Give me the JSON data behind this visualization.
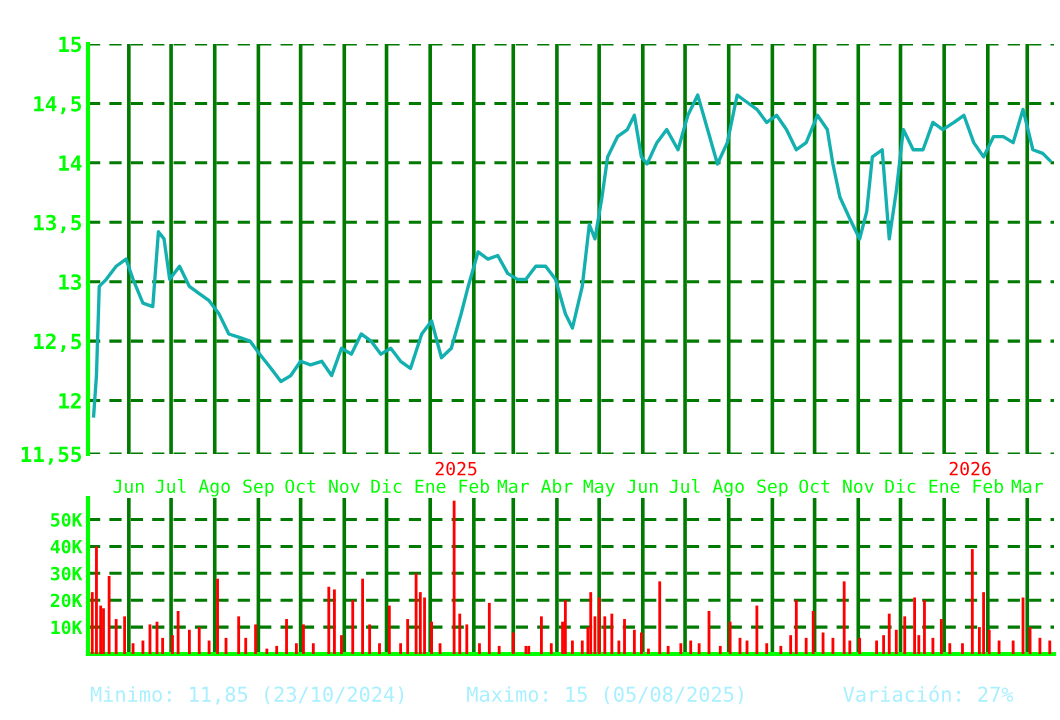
{
  "chart_data": [
    {
      "type": "line",
      "xlim": [
        "2024-05-03",
        "2026-03-20"
      ],
      "ylim": [
        11.55,
        15
      ],
      "yticks": [
        {
          "value": 11.55,
          "label": "11,55"
        },
        {
          "value": 12,
          "label": "12"
        },
        {
          "value": 12.5,
          "label": "12,5"
        },
        {
          "value": 13,
          "label": "13"
        },
        {
          "value": 13.5,
          "label": "13,5"
        },
        {
          "value": 14,
          "label": "14"
        },
        {
          "value": 14.5,
          "label": "14,5"
        },
        {
          "value": 15,
          "label": "15"
        }
      ],
      "xticks": [
        {
          "value": "2024-06-01",
          "label": "Jun"
        },
        {
          "value": "2024-07-01",
          "label": "Jul"
        },
        {
          "value": "2024-08-01",
          "label": "Ago"
        },
        {
          "value": "2024-09-01",
          "label": "Sep"
        },
        {
          "value": "2024-10-01",
          "label": "Oct"
        },
        {
          "value": "2024-11-01",
          "label": "Nov"
        },
        {
          "value": "2024-12-01",
          "label": "Dic"
        },
        {
          "value": "2025-01-01",
          "label": "Ene"
        },
        {
          "value": "2025-02-01",
          "label": "Feb"
        },
        {
          "value": "2025-03-01",
          "label": "Mar"
        },
        {
          "value": "2025-04-01",
          "label": "Abr"
        },
        {
          "value": "2025-05-01",
          "label": "May"
        },
        {
          "value": "2025-06-01",
          "label": "Jun"
        },
        {
          "value": "2025-07-01",
          "label": "Jul"
        },
        {
          "value": "2025-08-01",
          "label": "Ago"
        },
        {
          "value": "2025-09-01",
          "label": "Sep"
        },
        {
          "value": "2025-10-01",
          "label": "Oct"
        },
        {
          "value": "2025-11-01",
          "label": "Nov"
        },
        {
          "value": "2025-12-01",
          "label": "Dic"
        },
        {
          "value": "2026-01-01",
          "label": "Ene"
        },
        {
          "value": "2026-02-01",
          "label": "Feb"
        },
        {
          "value": "2026-03-01",
          "label": "Mar"
        }
      ],
      "annotations": [
        "2025",
        "2026"
      ],
      "grid": true,
      "series": [
        {
          "color": "#14b0b0",
          "x": [
            "2024-05-07",
            "2024-05-09",
            "2024-05-11",
            "2024-05-16",
            "2024-05-23",
            "2024-05-30",
            "2024-06-04",
            "2024-06-11",
            "2024-06-18",
            "2024-06-22",
            "2024-06-26",
            "2024-06-30",
            "2024-07-07",
            "2024-07-14",
            "2024-07-21",
            "2024-07-28",
            "2024-08-04",
            "2024-08-11",
            "2024-08-19",
            "2024-08-26",
            "2024-09-02",
            "2024-09-10",
            "2024-09-17",
            "2024-09-24",
            "2024-10-01",
            "2024-10-08",
            "2024-10-16",
            "2024-10-23",
            "2024-10-30",
            "2024-11-06",
            "2024-11-13",
            "2024-11-20",
            "2024-11-27",
            "2024-12-04",
            "2024-12-11",
            "2024-12-18",
            "2024-12-26",
            "2025-01-02",
            "2025-01-09",
            "2025-01-16",
            "2025-01-23",
            "2025-01-28",
            "2025-02-04",
            "2025-02-11",
            "2025-02-18",
            "2025-02-25",
            "2025-03-04",
            "2025-03-10",
            "2025-03-17",
            "2025-03-24",
            "2025-03-31",
            "2025-04-07",
            "2025-04-12",
            "2025-04-19",
            "2025-04-24",
            "2025-04-28",
            "2025-05-03",
            "2025-05-07",
            "2025-05-14",
            "2025-05-21",
            "2025-05-26",
            "2025-05-31",
            "2025-06-04",
            "2025-06-11",
            "2025-06-18",
            "2025-06-26",
            "2025-07-03",
            "2025-07-10",
            "2025-07-17",
            "2025-07-24",
            "2025-07-31",
            "2025-08-07",
            "2025-08-14",
            "2025-08-21",
            "2025-08-28",
            "2025-09-04",
            "2025-09-11",
            "2025-09-18",
            "2025-09-25",
            "2025-10-03",
            "2025-10-10",
            "2025-10-14",
            "2025-10-19",
            "2025-10-26",
            "2025-11-02",
            "2025-11-07",
            "2025-11-11",
            "2025-11-18",
            "2025-11-23",
            "2025-11-28",
            "2025-12-03",
            "2025-12-10",
            "2025-12-17",
            "2025-12-24",
            "2025-12-31",
            "2026-01-08",
            "2026-01-15",
            "2026-01-22",
            "2026-01-29",
            "2026-02-05",
            "2026-02-12",
            "2026-02-19",
            "2026-02-26",
            "2026-03-05",
            "2026-03-12",
            "2026-03-17"
          ],
          "values": [
            11.87,
            12.21,
            12.96,
            13.02,
            13.13,
            13.19,
            13.02,
            12.82,
            12.79,
            13.42,
            13.36,
            13.02,
            13.13,
            12.96,
            12.9,
            12.84,
            12.73,
            12.56,
            12.53,
            12.5,
            12.39,
            12.27,
            12.16,
            12.21,
            12.33,
            12.3,
            12.33,
            12.21,
            12.44,
            12.39,
            12.56,
            12.5,
            12.39,
            12.44,
            12.33,
            12.27,
            12.56,
            12.67,
            12.36,
            12.44,
            12.73,
            12.96,
            13.25,
            13.19,
            13.22,
            13.07,
            13.02,
            13.02,
            13.13,
            13.13,
            13.02,
            12.73,
            12.61,
            12.96,
            13.48,
            13.36,
            13.71,
            14.05,
            14.22,
            14.28,
            14.4,
            14.05,
            13.99,
            14.17,
            14.28,
            14.11,
            14.4,
            14.57,
            14.28,
            13.99,
            14.17,
            14.57,
            14.51,
            14.45,
            14.34,
            14.4,
            14.28,
            14.11,
            14.17,
            14.4,
            14.28,
            13.99,
            13.71,
            13.53,
            13.36,
            13.59,
            14.05,
            14.11,
            13.36,
            13.76,
            14.28,
            14.11,
            14.11,
            14.34,
            14.28,
            14.34,
            14.4,
            14.17,
            14.05,
            14.22,
            14.22,
            14.17,
            14.45,
            14.11,
            14.08,
            14.02
          ]
        }
      ]
    },
    {
      "type": "bar",
      "xlim": [
        "2024-05-03",
        "2026-03-20"
      ],
      "ylim": [
        0,
        58000
      ],
      "tick_labels": "y",
      "grid": true,
      "yticks": [
        {
          "value": 10000,
          "label": "10K"
        },
        {
          "value": 20000,
          "label": "20K"
        },
        {
          "value": 30000,
          "label": "30K"
        },
        {
          "value": 40000,
          "label": "40K"
        },
        {
          "value": 50000,
          "label": "50K"
        }
      ],
      "xticks": [
        {
          "value": "2024-06-01",
          "label": null
        },
        {
          "value": "2024-07-01",
          "label": null
        },
        {
          "value": "2024-08-01",
          "label": null
        },
        {
          "value": "2024-09-01",
          "label": null
        },
        {
          "value": "2024-10-01",
          "label": null
        },
        {
          "value": "2024-11-01",
          "label": null
        },
        {
          "value": "2024-12-01",
          "label": null
        },
        {
          "value": "2025-01-01",
          "label": null
        },
        {
          "value": "2025-02-01",
          "label": null
        },
        {
          "value": "2025-03-01",
          "label": null
        },
        {
          "value": "2025-04-01",
          "label": null
        },
        {
          "value": "2025-05-01",
          "label": null
        },
        {
          "value": "2025-06-01",
          "label": null
        },
        {
          "value": "2025-07-01",
          "label": null
        },
        {
          "value": "2025-08-01",
          "label": null
        },
        {
          "value": "2025-09-01",
          "label": null
        },
        {
          "value": "2025-10-01",
          "label": null
        },
        {
          "value": "2025-11-01",
          "label": null
        },
        {
          "value": "2025-12-01",
          "label": null
        },
        {
          "value": "2026-01-01",
          "label": null
        },
        {
          "value": "2026-02-01",
          "label": null
        },
        {
          "value": "2026-03-01",
          "label": null
        }
      ],
      "annotations": [
        "Minimo: 11,85 (23/10/2024)",
        "Maximo: 15 (05/08/2025)",
        "Variación: 27%"
      ],
      "series": [
        {
          "color": "#ff0000",
          "x": [
            "2024-05-06",
            "2024-05-09",
            "2024-05-12",
            "2024-05-14",
            "2024-05-18",
            "2024-05-23",
            "2024-05-29",
            "2024-06-04",
            "2024-06-11",
            "2024-06-16",
            "2024-06-21",
            "2024-06-25",
            "2024-07-02",
            "2024-07-06",
            "2024-07-14",
            "2024-07-21",
            "2024-07-28",
            "2024-08-03",
            "2024-08-09",
            "2024-08-18",
            "2024-08-23",
            "2024-08-30",
            "2024-09-07",
            "2024-09-14",
            "2024-09-21",
            "2024-09-28",
            "2024-10-03",
            "2024-10-10",
            "2024-10-21",
            "2024-10-25",
            "2024-10-30",
            "2024-11-07",
            "2024-11-14",
            "2024-11-19",
            "2024-11-26",
            "2024-12-03",
            "2024-12-11",
            "2024-12-16",
            "2024-12-22",
            "2024-12-25",
            "2024-12-28",
            "2025-01-02",
            "2025-01-08",
            "2025-01-18",
            "2025-01-22",
            "2025-01-27",
            "2025-02-05",
            "2025-02-12",
            "2025-02-19",
            "2025-03-01",
            "2025-03-10",
            "2025-03-12",
            "2025-03-21",
            "2025-03-28",
            "2025-04-05",
            "2025-04-07",
            "2025-04-12",
            "2025-04-19",
            "2025-04-23",
            "2025-04-25",
            "2025-04-28",
            "2025-05-01",
            "2025-05-05",
            "2025-05-10",
            "2025-05-15",
            "2025-05-19",
            "2025-05-26",
            "2025-05-31",
            "2025-06-05",
            "2025-06-13",
            "2025-06-19",
            "2025-06-28",
            "2025-07-05",
            "2025-07-11",
            "2025-07-18",
            "2025-07-26",
            "2025-08-02",
            "2025-08-09",
            "2025-08-14",
            "2025-08-21",
            "2025-08-28",
            "2025-09-07",
            "2025-09-14",
            "2025-09-18",
            "2025-09-25",
            "2025-09-30",
            "2025-10-07",
            "2025-10-14",
            "2025-10-22",
            "2025-10-26",
            "2025-11-02",
            "2025-11-14",
            "2025-11-19",
            "2025-11-23",
            "2025-11-28",
            "2025-12-04",
            "2025-12-11",
            "2025-12-14",
            "2025-12-18",
            "2025-12-24",
            "2025-12-30",
            "2026-01-05",
            "2026-01-14",
            "2026-01-21",
            "2026-01-26",
            "2026-01-29",
            "2026-02-02",
            "2026-02-09",
            "2026-02-19",
            "2026-02-26",
            "2026-03-03",
            "2026-03-10",
            "2026-03-17"
          ],
          "values": [
            23000,
            40000,
            18000,
            17000,
            29000,
            13000,
            14000,
            4000,
            5000,
            11000,
            12000,
            6000,
            7000,
            16000,
            9000,
            10000,
            5000,
            28000,
            6000,
            14000,
            6000,
            11000,
            2000,
            3000,
            13000,
            4000,
            11000,
            4000,
            25000,
            24000,
            7000,
            20000,
            28000,
            11000,
            4000,
            18000,
            4000,
            13000,
            30000,
            23000,
            21000,
            12000,
            4000,
            57000,
            15000,
            11000,
            4000,
            19000,
            3000,
            8000,
            3000,
            3000,
            14000,
            4000,
            12000,
            20000,
            5000,
            5000,
            10000,
            23000,
            14000,
            21000,
            14000,
            15000,
            5000,
            13000,
            9000,
            8000,
            2000,
            27000,
            3000,
            4000,
            5000,
            4000,
            16000,
            3000,
            12000,
            6000,
            5000,
            18000,
            4000,
            3000,
            7000,
            20000,
            6000,
            16000,
            8000,
            6000,
            27000,
            5000,
            6000,
            5000,
            7000,
            15000,
            9000,
            14000,
            21000,
            7000,
            20000,
            6000,
            13000,
            4000,
            4000,
            39000,
            10000,
            23000,
            9000,
            5000,
            5000,
            21000,
            10000,
            6000,
            5000
          ]
        }
      ]
    }
  ]
}
